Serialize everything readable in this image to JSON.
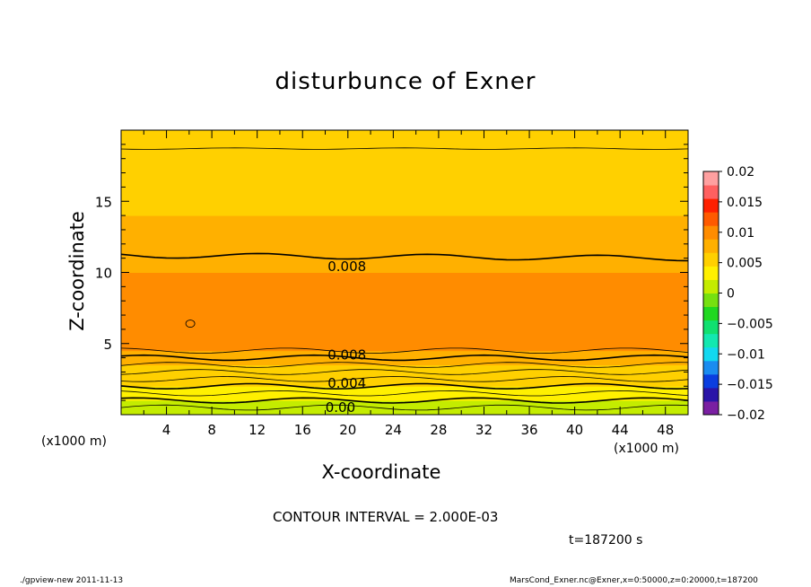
{
  "chart_data": {
    "type": "heatmap",
    "title": "disturbunce of Exner",
    "xlabel": "X-coordinate",
    "ylabel": "Z-coordinate",
    "x_unit_label": "(x1000 m)",
    "xlim": [
      0,
      50
    ],
    "ylim": [
      0,
      20
    ],
    "x_ticks": [
      4,
      8,
      12,
      16,
      20,
      24,
      28,
      32,
      36,
      40,
      44,
      48
    ],
    "x_tick_labels": [
      "4",
      "8",
      "12",
      "16",
      "20",
      "24",
      "28",
      "32",
      "36",
      "40",
      "44",
      "48"
    ],
    "y_ticks": [
      5,
      10,
      15
    ],
    "y_tick_labels": [
      "5",
      "10",
      "15"
    ],
    "z_profile": {
      "z": [
        0,
        0.5,
        1.0,
        1.5,
        2.0,
        2.5,
        3.0,
        3.5,
        4.0,
        4.5,
        5.0,
        6.0,
        7.0,
        8.0,
        9.0,
        10.0,
        11.0,
        12.0,
        14.0,
        16.0,
        18.5,
        20.0
      ],
      "value": [
        0.0,
        0.001,
        0.002,
        0.003,
        0.004,
        0.005,
        0.006,
        0.007,
        0.008,
        0.009,
        0.0095,
        0.0105,
        0.0108,
        0.0103,
        0.0097,
        0.009,
        0.008,
        0.007,
        0.0065,
        0.0058,
        0.006,
        0.0055
      ]
    },
    "contour_labels": [
      {
        "text": "0.008",
        "x": 17.9,
        "z": 10.4
      },
      {
        "text": "0.008",
        "x": 17.9,
        "z": 4.2
      },
      {
        "text": "0.004",
        "x": 17.9,
        "z": 2.2
      },
      {
        "text": "0.00",
        "x": 17.7,
        "z": 0.5
      }
    ],
    "colorbar": {
      "min": -0.02,
      "max": 0.02,
      "tick_labels": [
        "0.02",
        "0.015",
        "0.01",
        "0.005",
        "0",
        "−0.005",
        "−0.01",
        "−0.015",
        "−0.02"
      ],
      "tick_values": [
        0.02,
        0.015,
        0.01,
        0.005,
        0,
        -0.005,
        -0.01,
        -0.015,
        -0.02
      ],
      "colors": [
        "#7a1fa2",
        "#2a14a8",
        "#0a3ee0",
        "#1a8cf0",
        "#12d8f0",
        "#12e8b0",
        "#10e070",
        "#20d820",
        "#76e010",
        "#c4ec00",
        "#fff000",
        "#ffd000",
        "#ffb000",
        "#ff8c00",
        "#ff5a00",
        "#ff2000",
        "#ff6060",
        "#ffa0a0"
      ]
    },
    "contour_interval_text": "CONTOUR INTERVAL = 2.000E-03",
    "time_text": "t=187200 s"
  },
  "footer": {
    "left": "./gpview-new   2011-11-13",
    "right": "MarsCond_Exner.nc@Exner,x=0:50000,z=0:20000,t=187200"
  }
}
